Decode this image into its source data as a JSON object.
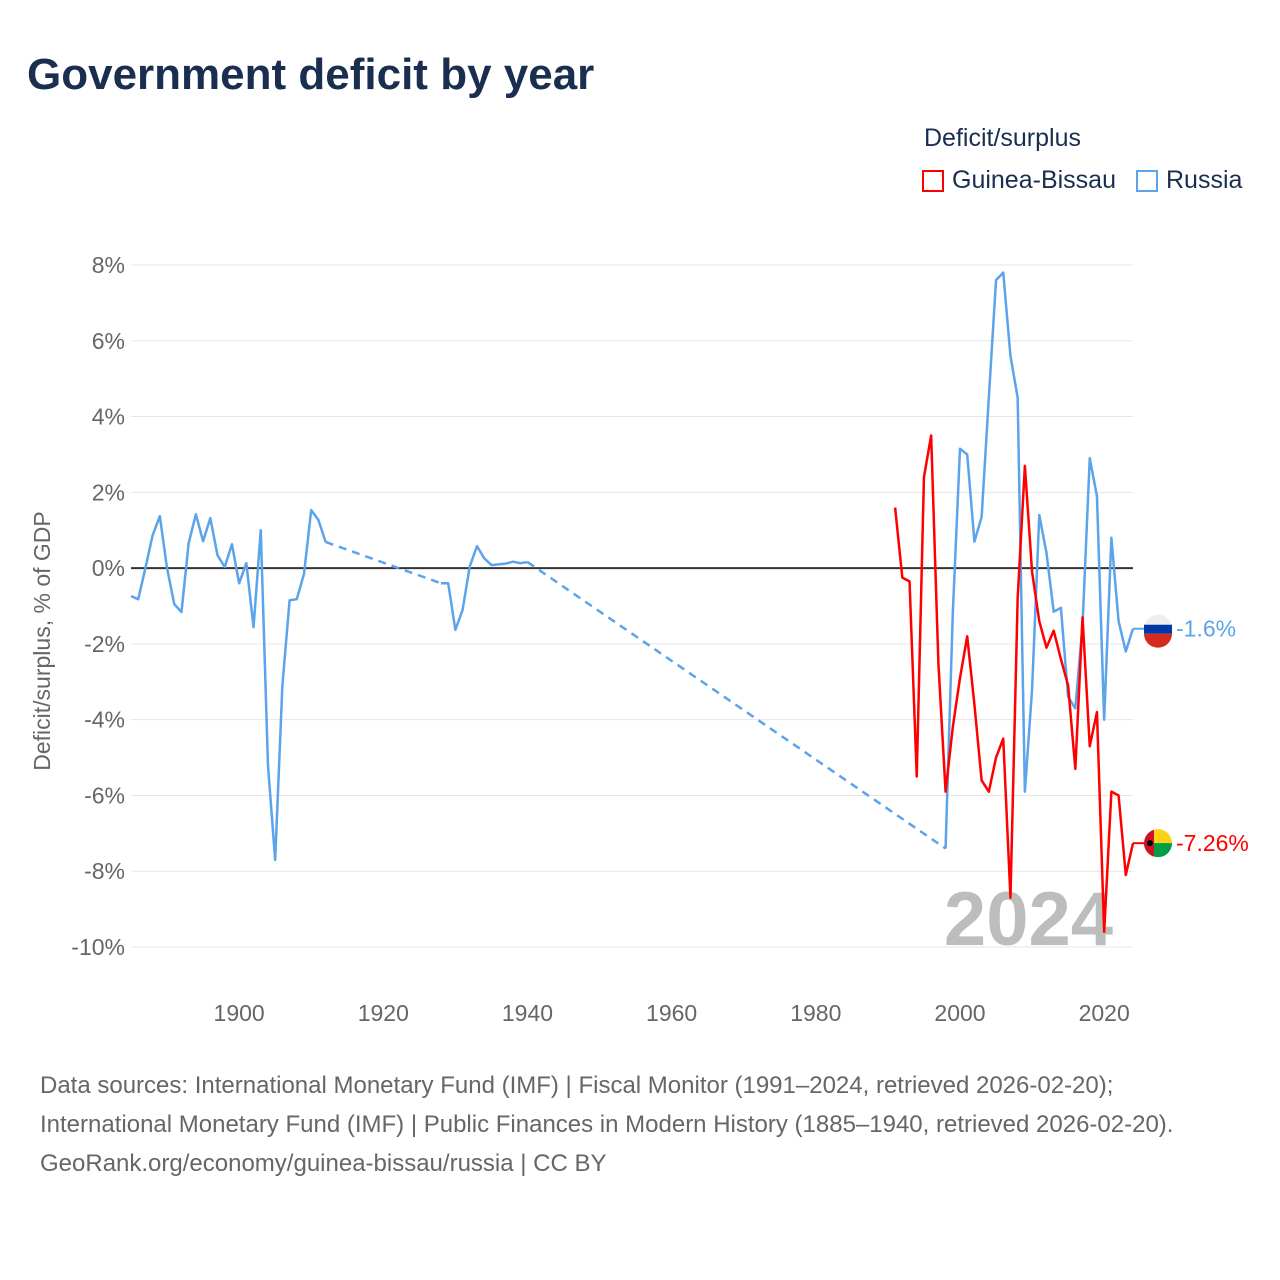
{
  "chart_data": {
    "type": "line",
    "title": "Government deficit by year",
    "ylabel": "Deficit/surplus, % of GDP",
    "xlabel": "",
    "xlim": [
      1885,
      2024
    ],
    "ylim": [
      -10,
      8
    ],
    "x_ticks": [
      "1900",
      "1920",
      "1940",
      "1960",
      "1980",
      "2000",
      "2020"
    ],
    "y_ticks": [
      "8%",
      "6%",
      "4%",
      "2%",
      "0%",
      "-2%",
      "-4%",
      "-6%",
      "-8%",
      "-10%"
    ],
    "grid": true,
    "legend_title": "Deficit/surplus",
    "legend_position": "top-right",
    "year_watermark": "2024",
    "series": [
      {
        "name": "Guinea-Bissau",
        "color": "#ff0000",
        "end_label": "-7.26%",
        "segments": [
          {
            "x": [
              1991,
              1992,
              1993,
              1994,
              1995,
              1996,
              1997,
              1998,
              1999,
              2000,
              2001,
              2002,
              2003,
              2004,
              2005,
              2006,
              2007,
              2008,
              2009,
              2010,
              2011,
              2012,
              2013,
              2014,
              2015,
              2016,
              2017,
              2018,
              2019,
              2020,
              2021,
              2022,
              2023,
              2024
            ],
            "y": [
              1.6,
              -0.25,
              -0.35,
              -5.5,
              2.4,
              3.5,
              -2.5,
              -5.9,
              -4.2,
              -2.9,
              -1.8,
              -3.6,
              -5.6,
              -5.9,
              -5.0,
              -4.5,
              -8.7,
              -0.8,
              2.7,
              -0.1,
              -1.4,
              -2.1,
              -1.65,
              -2.4,
              -3.1,
              -5.3,
              -1.3,
              -4.7,
              -3.8,
              -9.6,
              -5.9,
              -6.0,
              -8.1,
              -7.26
            ]
          }
        ]
      },
      {
        "name": "Russia",
        "color": "#5ba3ea",
        "end_label": "-1.6%",
        "segments": [
          {
            "x": [
              1885,
              1886,
              1887,
              1888,
              1889,
              1890,
              1891,
              1892,
              1893,
              1894,
              1895,
              1896,
              1897,
              1898,
              1899,
              1900,
              1901,
              1902,
              1903,
              1904,
              1905,
              1906,
              1907,
              1908,
              1909,
              1910,
              1911,
              1912
            ],
            "y": [
              -0.74,
              -0.82,
              0,
              0.87,
              1.37,
              0,
              -0.95,
              -1.16,
              0.66,
              1.42,
              0.71,
              1.32,
              0.34,
              0.03,
              0.63,
              -0.4,
              0.13,
              -1.56,
              1.0,
              -5.2,
              -7.7,
              -3.1,
              -0.85,
              -0.82,
              -0.15,
              1.53,
              1.27,
              0.69
            ]
          },
          {
            "x": [
              1928,
              1929,
              1930,
              1931,
              1932,
              1933,
              1934,
              1935,
              1936,
              1937,
              1938,
              1939,
              1940
            ],
            "y": [
              -0.4,
              -0.4,
              -1.63,
              -1.1,
              0.05,
              0.58,
              0.26,
              0.08,
              0.1,
              0.12,
              0.17,
              0.13,
              0.16
            ]
          },
          {
            "x": [
              1998,
              1999,
              2000,
              2001,
              2002,
              2003,
              2004,
              2005,
              2006,
              2007,
              2008,
              2009,
              2010,
              2011,
              2012,
              2013,
              2014,
              2015,
              2016,
              2017,
              2018,
              2019,
              2020,
              2021,
              2022,
              2023,
              2024
            ],
            "y": [
              -7.4,
              -1.2,
              3.15,
              3.0,
              0.7,
              1.35,
              4.5,
              7.6,
              7.8,
              5.6,
              4.5,
              -5.9,
              -3.2,
              1.4,
              0.4,
              -1.15,
              -1.05,
              -3.4,
              -3.7,
              -1.5,
              2.9,
              1.9,
              -4.0,
              0.8,
              -1.4,
              -2.2,
              -1.6
            ]
          }
        ]
      }
    ]
  },
  "footer": {
    "sources": "Data sources: International Monetary Fund (IMF) | Fiscal Monitor (1991–2024, retrieved 2026-02-20); International Monetary Fund (IMF) | Public Finances in Modern History (1885–1940, retrieved 2026-02-20).",
    "link": "GeoRank.org/economy/guinea-bissau/russia | CC BY"
  }
}
